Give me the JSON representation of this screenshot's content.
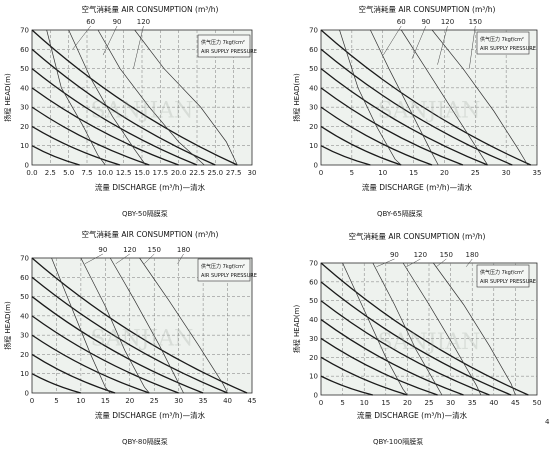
{
  "chart_data": [
    {
      "type": "line",
      "model": "QBY-50",
      "caption": "QBY-50隔膜泵",
      "title": "空气消耗量 AIR CONSUMPTION (m³/h)",
      "xlabel": "流量 DISCHARGE (m³/h)—清水",
      "ylabel": "扬程 HEAD(m)",
      "legend": [
        "供气压力 7kgf/cm²",
        "AIR SUPPLY PRESSURE"
      ],
      "air_labels": [
        {
          "text": "60",
          "x": 8,
          "y": 60
        },
        {
          "text": "90",
          "x": 11.6,
          "y": 57
        },
        {
          "text": "120",
          "x": 15.2,
          "y": 50
        }
      ],
      "xlim": [
        0,
        30
      ],
      "ylim": [
        0,
        70
      ],
      "xticks": [
        "0.0",
        "2.5",
        "5.0",
        "7.5",
        "10.0",
        "12.5",
        "15.0",
        "17.5",
        "20.0",
        "22.5",
        "25.0",
        "27.5",
        "30"
      ],
      "yticks": [
        "0",
        "10",
        "20",
        "30",
        "40",
        "50",
        "60",
        "70"
      ],
      "pressure_curves": [
        [
          [
            0,
            70
          ],
          [
            28,
            0
          ]
        ],
        [
          [
            0,
            60
          ],
          [
            25,
            0
          ]
        ],
        [
          [
            0,
            50
          ],
          [
            22.5,
            0
          ]
        ],
        [
          [
            0,
            40
          ],
          [
            20,
            0
          ]
        ],
        [
          [
            0,
            30
          ],
          [
            16,
            0
          ]
        ],
        [
          [
            0,
            20
          ],
          [
            12,
            0
          ]
        ],
        [
          [
            0,
            10
          ],
          [
            6.5,
            0
          ]
        ]
      ],
      "air_curves": [
        [
          [
            2,
            70
          ],
          [
            4,
            40
          ],
          [
            7,
            20
          ],
          [
            9,
            5
          ],
          [
            10,
            0
          ]
        ],
        [
          [
            5,
            70
          ],
          [
            8,
            45
          ],
          [
            11,
            25
          ],
          [
            14,
            8
          ],
          [
            15.5,
            0
          ]
        ],
        [
          [
            9,
            70
          ],
          [
            12,
            50
          ],
          [
            16,
            30
          ],
          [
            20,
            12
          ],
          [
            23.5,
            0
          ]
        ],
        [
          [
            14,
            70
          ],
          [
            18,
            50
          ],
          [
            23,
            30
          ],
          [
            26.5,
            12
          ],
          [
            28,
            0
          ]
        ]
      ]
    },
    {
      "type": "line",
      "model": "QBY-65",
      "caption": "QBY-65隔膜泵",
      "title": "空气消耗量 AIR CONSUMPTION (m³/h)",
      "xlabel": "流量 DISCHARGE (m³/h)—清水",
      "ylabel": "扬程 HEAD(m)",
      "legend": [
        "供气压力 7kgf/cm²",
        "AIR SUPPLY PRESSURE"
      ],
      "air_labels": [
        {
          "text": "60",
          "x": 13,
          "y": 57
        },
        {
          "text": "90",
          "x": 17,
          "y": 55
        },
        {
          "text": "120",
          "x": 20.5,
          "y": 52
        },
        {
          "text": "150",
          "x": 25,
          "y": 50
        }
      ],
      "xlim": [
        0,
        35
      ],
      "ylim": [
        0,
        70
      ],
      "xticks": [
        "0",
        "5",
        "10",
        "15",
        "20",
        "25",
        "30",
        "35"
      ],
      "yticks": [
        "0",
        "10",
        "20",
        "30",
        "40",
        "50",
        "60",
        "70"
      ],
      "pressure_curves": [
        [
          [
            0,
            70
          ],
          [
            34,
            0
          ]
        ],
        [
          [
            0,
            60
          ],
          [
            31,
            0
          ]
        ],
        [
          [
            0,
            50
          ],
          [
            27,
            0
          ]
        ],
        [
          [
            0,
            40
          ],
          [
            23,
            0
          ]
        ],
        [
          [
            0,
            30
          ],
          [
            18,
            0
          ]
        ],
        [
          [
            0,
            20
          ],
          [
            13,
            0
          ]
        ],
        [
          [
            0,
            10
          ],
          [
            8,
            0
          ]
        ]
      ],
      "air_curves": [
        [
          [
            3,
            70
          ],
          [
            6,
            40
          ],
          [
            9,
            20
          ],
          [
            12,
            3
          ],
          [
            13,
            0
          ]
        ],
        [
          [
            8,
            70
          ],
          [
            11,
            50
          ],
          [
            15,
            25
          ],
          [
            18,
            6
          ],
          [
            19,
            0
          ]
        ],
        [
          [
            13,
            70
          ],
          [
            17,
            50
          ],
          [
            21,
            30
          ],
          [
            25,
            10
          ],
          [
            27,
            0
          ]
        ],
        [
          [
            18,
            70
          ],
          [
            23,
            50
          ],
          [
            28,
            28
          ],
          [
            32,
            8
          ],
          [
            33.5,
            0
          ]
        ]
      ]
    },
    {
      "type": "line",
      "model": "QBY-80",
      "caption": "QBY-80隔膜泵",
      "title": "空气消耗量 AIR CONSUMPTION (m³/h)",
      "xlabel": "流量 DISCHARGE (m³/h)—清水",
      "ylabel": "扬程 HEAD(m)",
      "legend": [
        "供气压力 7kgf/cm²",
        "AIR SUPPLY PRESSURE"
      ],
      "air_labels": [
        {
          "text": "90",
          "x": 14.5,
          "y": 67
        },
        {
          "text": "120",
          "x": 20,
          "y": 67
        },
        {
          "text": "150",
          "x": 25,
          "y": 67
        },
        {
          "text": "180",
          "x": 31,
          "y": 67
        }
      ],
      "xlim": [
        0,
        45
      ],
      "ylim": [
        0,
        70
      ],
      "xticks": [
        "0",
        "5",
        "10",
        "15",
        "20",
        "25",
        "30",
        "35",
        "40",
        "45"
      ],
      "yticks": [
        "0",
        "10",
        "20",
        "30",
        "40",
        "50",
        "60",
        "70"
      ],
      "pressure_curves": [
        [
          [
            0,
            70
          ],
          [
            44,
            0
          ]
        ],
        [
          [
            0,
            60
          ],
          [
            40,
            0
          ]
        ],
        [
          [
            0,
            50
          ],
          [
            35,
            0
          ]
        ],
        [
          [
            0,
            40
          ],
          [
            30,
            0
          ]
        ],
        [
          [
            0,
            30
          ],
          [
            24,
            0
          ]
        ],
        [
          [
            0,
            20
          ],
          [
            17,
            0
          ]
        ],
        [
          [
            0,
            10
          ],
          [
            10,
            0
          ]
        ]
      ],
      "air_curves": [
        [
          [
            4,
            70
          ],
          [
            8,
            45
          ],
          [
            12,
            20
          ],
          [
            15,
            3
          ],
          [
            16,
            0
          ]
        ],
        [
          [
            10,
            70
          ],
          [
            15,
            45
          ],
          [
            19,
            22
          ],
          [
            23,
            3
          ],
          [
            24,
            0
          ]
        ],
        [
          [
            16,
            70
          ],
          [
            21,
            48
          ],
          [
            26,
            25
          ],
          [
            30,
            5
          ],
          [
            31,
            0
          ]
        ],
        [
          [
            22,
            70
          ],
          [
            28,
            48
          ],
          [
            34,
            25
          ],
          [
            39,
            5
          ],
          [
            40,
            0
          ]
        ]
      ]
    },
    {
      "type": "line",
      "model": "QBY-100",
      "caption": "QBY-100隔膜泵",
      "title": "空气消耗量 AIR CONSUMPTION (m³/h)",
      "xlabel": "流量 DISCHARGE (m³/h)—清水",
      "ylabel": "扬程 HEAD(m)",
      "legend": [
        "供气压力 7kgf/cm²",
        "AIR SUPPLY PRESSURE"
      ],
      "air_labels": [
        {
          "text": "90",
          "x": 17,
          "y": 68
        },
        {
          "text": "120",
          "x": 23,
          "y": 68
        },
        {
          "text": "150",
          "x": 29,
          "y": 68
        },
        {
          "text": "180",
          "x": 35,
          "y": 68
        }
      ],
      "xlim": [
        0,
        50
      ],
      "ylim": [
        0,
        70
      ],
      "xticks": [
        "0",
        "5",
        "10",
        "15",
        "20",
        "25",
        "30",
        "35",
        "40",
        "45",
        "50"
      ],
      "yticks": [
        "0",
        "10",
        "20",
        "30",
        "40",
        "50",
        "60",
        "70"
      ],
      "pressure_curves": [
        [
          [
            0,
            70
          ],
          [
            48,
            0
          ]
        ],
        [
          [
            0,
            60
          ],
          [
            44,
            0
          ]
        ],
        [
          [
            0,
            50
          ],
          [
            39,
            0
          ]
        ],
        [
          [
            0,
            40
          ],
          [
            33,
            0
          ]
        ],
        [
          [
            0,
            30
          ],
          [
            27,
            0
          ]
        ],
        [
          [
            0,
            20
          ],
          [
            20,
            0
          ]
        ],
        [
          [
            0,
            10
          ],
          [
            12,
            0
          ]
        ]
      ],
      "air_curves": [
        [
          [
            5,
            70
          ],
          [
            10,
            45
          ],
          [
            15,
            20
          ],
          [
            19,
            3
          ],
          [
            20,
            0
          ]
        ],
        [
          [
            12,
            70
          ],
          [
            17,
            48
          ],
          [
            22,
            24
          ],
          [
            27,
            4
          ],
          [
            28,
            0
          ]
        ],
        [
          [
            19,
            70
          ],
          [
            25,
            48
          ],
          [
            31,
            25
          ],
          [
            36,
            5
          ],
          [
            37,
            0
          ]
        ],
        [
          [
            26,
            70
          ],
          [
            33,
            48
          ],
          [
            39,
            26
          ],
          [
            44,
            6
          ],
          [
            45,
            0
          ]
        ]
      ]
    }
  ],
  "page_number": "4",
  "watermark": "SANJIAN"
}
